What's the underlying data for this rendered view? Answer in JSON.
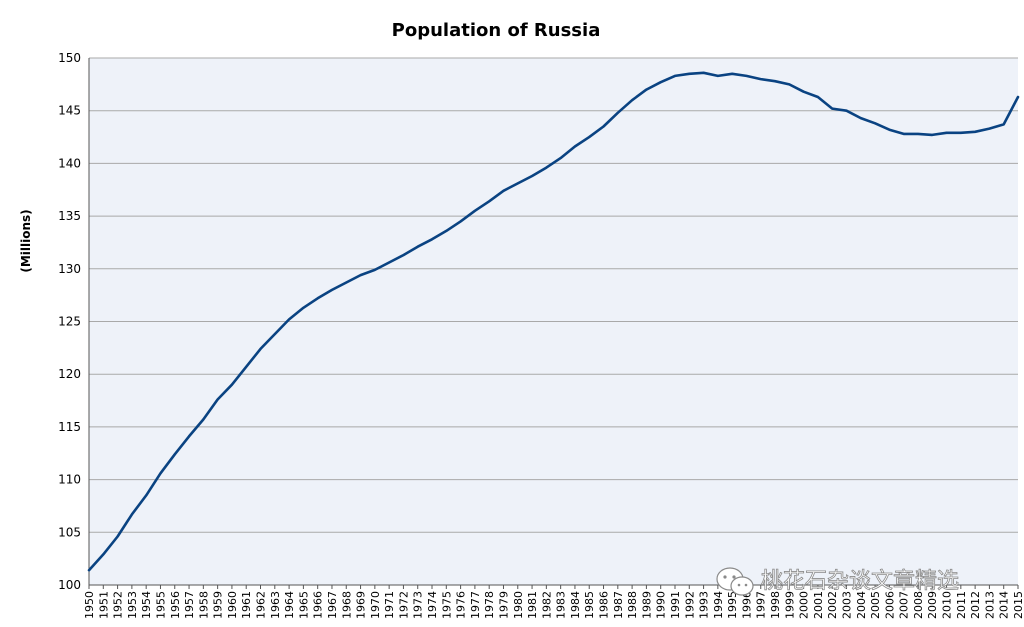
{
  "chart_data": {
    "type": "line",
    "title": "Population of Russia",
    "xlabel": "",
    "ylabel": "(Millions)",
    "ylim": [
      100,
      150
    ],
    "yticks": [
      100,
      105,
      110,
      115,
      120,
      125,
      130,
      135,
      140,
      145,
      150
    ],
    "grid": true,
    "legend": "none",
    "line_color": "#0a4382",
    "plot_bg": "#eef2f9",
    "x": [
      1950,
      1951,
      1952,
      1953,
      1954,
      1955,
      1956,
      1957,
      1958,
      1959,
      1960,
      1961,
      1962,
      1963,
      1964,
      1965,
      1966,
      1967,
      1968,
      1969,
      1970,
      1971,
      1972,
      1973,
      1974,
      1975,
      1976,
      1977,
      1978,
      1979,
      1980,
      1981,
      1982,
      1983,
      1984,
      1985,
      1986,
      1987,
      1988,
      1989,
      1990,
      1991,
      1992,
      1993,
      1994,
      1995,
      1996,
      1997,
      1998,
      1999,
      2000,
      2001,
      2002,
      2003,
      2004,
      2005,
      2006,
      2007,
      2008,
      2009,
      2010,
      2011,
      2012,
      2013,
      2014,
      2015
    ],
    "x_tick_labels": [
      "1950",
      "1951",
      "1952",
      "1953",
      "1954",
      "1955",
      "1956",
      "1957",
      "1958",
      "1959",
      "1960",
      "1961",
      "1962",
      "1963",
      "1964",
      "1965",
      "1966",
      "1967",
      "1968",
      "1969",
      "1970",
      "1971",
      "1972",
      "1973",
      "1974",
      "1975",
      "1976",
      "1977",
      "1978",
      "1979",
      "1980",
      "1981",
      "1982",
      "1983",
      "1984",
      "1985",
      "1986",
      "1987",
      "1988",
      "1989",
      "1990",
      "1991",
      "1992",
      "1993",
      "1994",
      "1995",
      "1996",
      "1997",
      "1998",
      "1999",
      "2000",
      "2001",
      "2002",
      "2003",
      "2004",
      "2005",
      "2006",
      "2007",
      "2008",
      "2009",
      "2010",
      "2011",
      "2012",
      "2013",
      "2014",
      "2015"
    ],
    "series": [
      {
        "values": [
          101.4,
          102.9,
          104.6,
          106.7,
          108.5,
          110.6,
          112.4,
          114.1,
          115.7,
          117.6,
          119.0,
          120.7,
          122.4,
          123.8,
          125.2,
          126.3,
          127.2,
          128.0,
          128.7,
          129.4,
          129.9,
          130.6,
          131.3,
          132.1,
          132.8,
          133.6,
          134.5,
          135.5,
          136.4,
          137.4,
          138.1,
          138.8,
          139.6,
          140.5,
          141.6,
          142.5,
          143.5,
          144.8,
          146.0,
          147.0,
          147.7,
          148.3,
          148.5,
          148.6,
          148.3,
          148.5,
          148.3,
          148.0,
          147.8,
          147.5,
          146.8,
          146.3,
          145.2,
          145.0,
          144.3,
          143.8,
          143.2,
          142.8,
          142.8,
          142.7,
          142.9,
          142.9,
          143.0,
          143.3,
          143.7,
          146.3
        ]
      }
    ]
  },
  "watermark": {
    "text": "桃花石杂谈文章精选",
    "icon": "wechat-icon"
  }
}
